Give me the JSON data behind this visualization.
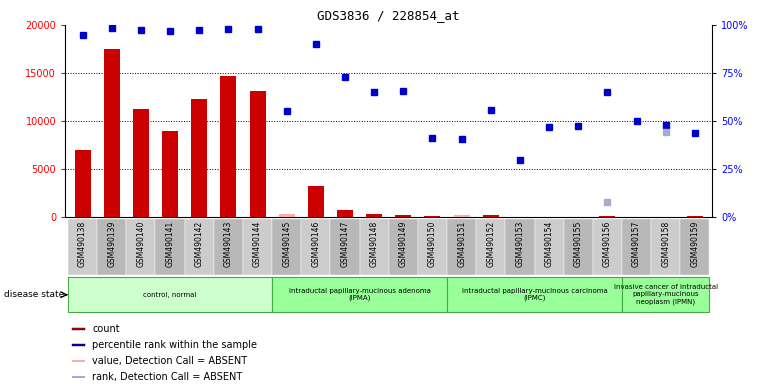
{
  "title": "GDS3836 / 228854_at",
  "samples": [
    "GSM490138",
    "GSM490139",
    "GSM490140",
    "GSM490141",
    "GSM490142",
    "GSM490143",
    "GSM490144",
    "GSM490145",
    "GSM490146",
    "GSM490147",
    "GSM490148",
    "GSM490149",
    "GSM490150",
    "GSM490151",
    "GSM490152",
    "GSM490153",
    "GSM490154",
    "GSM490155",
    "GSM490156",
    "GSM490157",
    "GSM490158",
    "GSM490159"
  ],
  "counts": [
    7000,
    17500,
    11200,
    9000,
    12300,
    14700,
    13100,
    null,
    3200,
    700,
    300,
    200,
    100,
    null,
    200,
    null,
    null,
    null,
    100,
    null,
    null,
    100
  ],
  "counts_absent": [
    null,
    null,
    null,
    null,
    null,
    null,
    null,
    300,
    null,
    null,
    null,
    null,
    null,
    200,
    null,
    null,
    null,
    null,
    null,
    null,
    null,
    null
  ],
  "ranks": [
    19000,
    19700,
    19500,
    19400,
    19500,
    19600,
    19600,
    11000,
    18000,
    14600,
    13000,
    13100,
    8200,
    8100,
    11100,
    5900,
    9400,
    9500,
    13000,
    10000,
    9600,
    8700
  ],
  "ranks_absent": [
    null,
    null,
    null,
    null,
    null,
    null,
    null,
    null,
    null,
    null,
    null,
    null,
    null,
    null,
    null,
    null,
    null,
    null,
    1600,
    null,
    8800,
    null
  ],
  "groups": [
    {
      "label": "control, normal",
      "start": 0,
      "end": 7,
      "color": "#ccffcc"
    },
    {
      "label": "intraductal papillary-mucinous adenoma\n(IPMA)",
      "start": 7,
      "end": 13,
      "color": "#99ff99"
    },
    {
      "label": "intraductal papillary-mucinous carcinoma\n(IPMC)",
      "start": 13,
      "end": 19,
      "color": "#99ff99"
    },
    {
      "label": "invasive cancer of intraductal\npapillary-mucinous\nneoplasm (IPMN)",
      "start": 19,
      "end": 22,
      "color": "#99ff99"
    }
  ],
  "ylim_left": [
    0,
    20000
  ],
  "ylim_right": [
    0,
    100
  ],
  "yticks_left": [
    0,
    5000,
    10000,
    15000,
    20000
  ],
  "yticks_right": [
    0,
    25,
    50,
    75,
    100
  ],
  "bar_color": "#cc0000",
  "bar_absent_color": "#ffaaaa",
  "rank_color": "#0000cc",
  "rank_absent_color": "#aaaacc",
  "legend_items": [
    {
      "label": "count",
      "color": "#cc0000"
    },
    {
      "label": "percentile rank within the sample",
      "color": "#0000cc"
    },
    {
      "label": "value, Detection Call = ABSENT",
      "color": "#ffaaaa"
    },
    {
      "label": "rank, Detection Call = ABSENT",
      "color": "#aaaacc"
    }
  ]
}
